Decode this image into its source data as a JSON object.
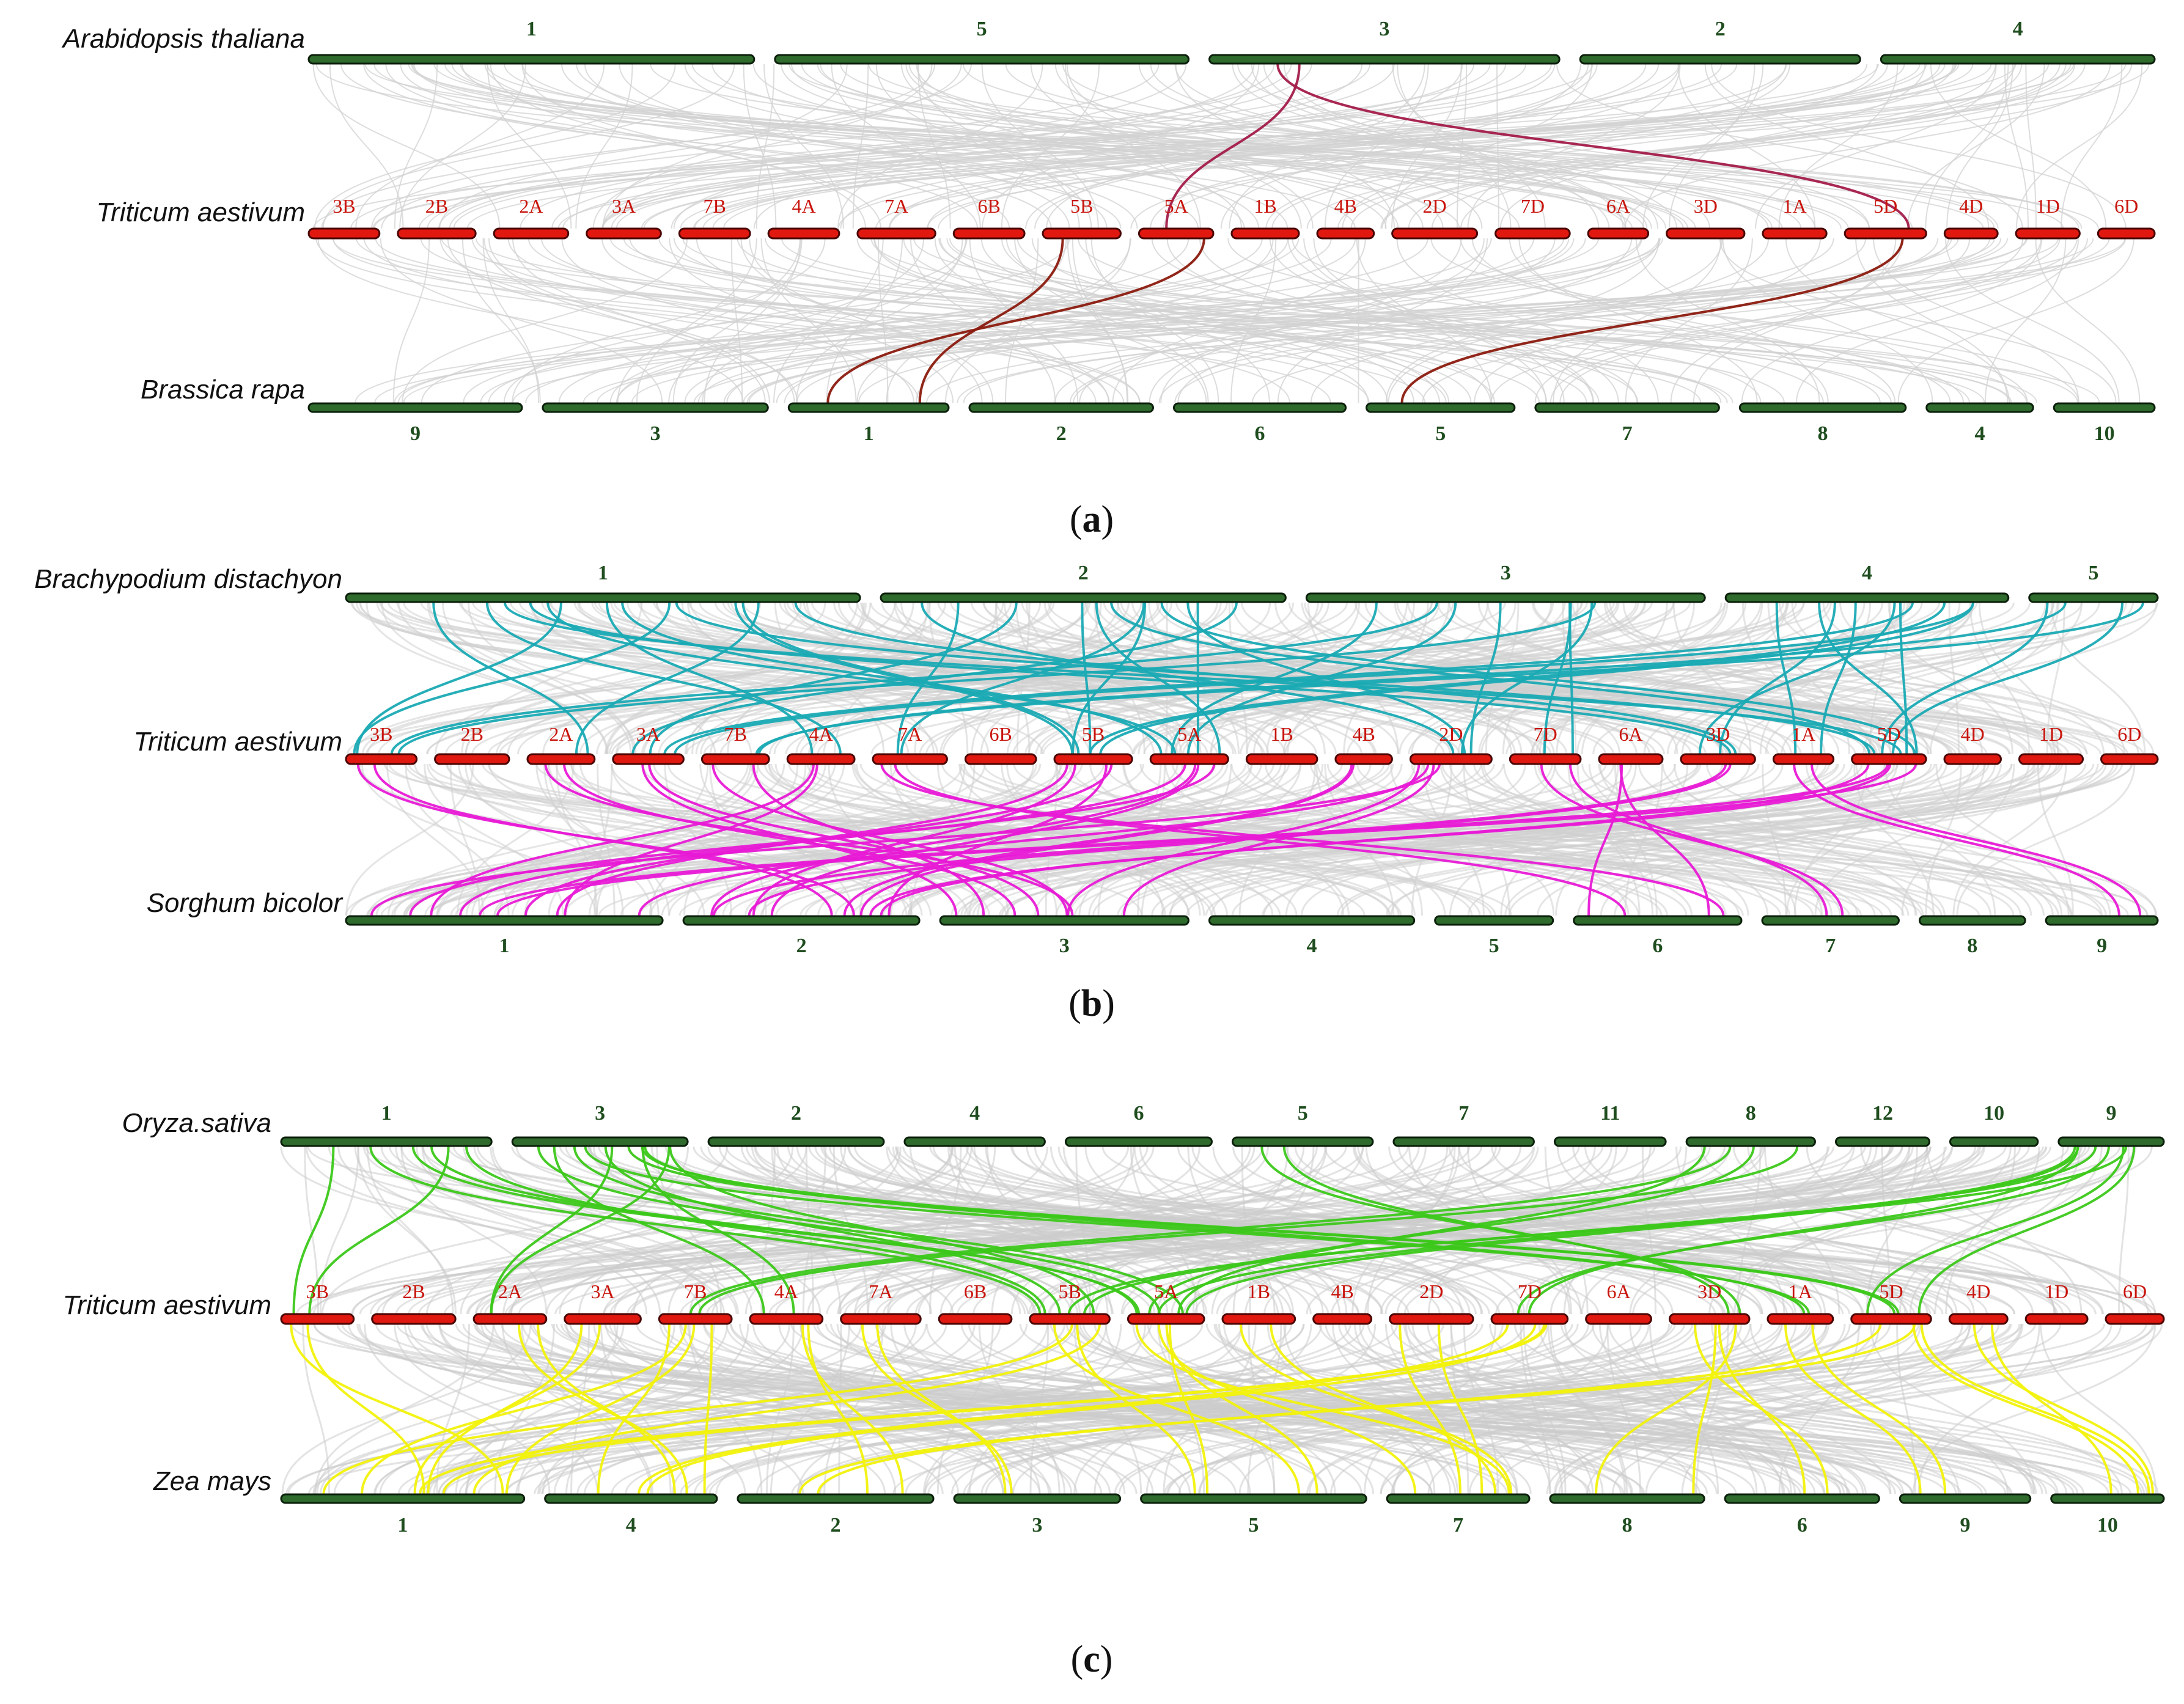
{
  "panels": [
    {
      "panel_label_open": "(",
      "panel_letter": "a",
      "panel_label_close": ")",
      "highlight_color": "#8b1a0e",
      "highlight_color_upper": "#a31b4a",
      "background_link_color": "#d2d2d2",
      "top_species": "Arabidopsis thaliana",
      "middle_species": "Triticum aestivum",
      "bottom_species": "Brassica rapa",
      "top_chromosomes": [
        "1",
        "5",
        "3",
        "2",
        "4"
      ],
      "middle_chromosomes": [
        "3B",
        "2B",
        "2A",
        "3A",
        "7B",
        "4A",
        "7A",
        "6B",
        "5B",
        "5A",
        "1B",
        "4B",
        "2D",
        "7D",
        "6A",
        "3D",
        "1A",
        "5D",
        "4D",
        "1D",
        "6D"
      ],
      "bottom_chromosomes": [
        "9",
        "3",
        "1",
        "2",
        "6",
        "5",
        "7",
        "8",
        "4",
        "10"
      ],
      "highlight_links_top": [
        [
          "3",
          "5A"
        ],
        [
          "3",
          "5D"
        ]
      ],
      "highlight_links_bottom": [
        [
          "5B",
          "1"
        ],
        [
          "5A",
          "1"
        ],
        [
          "5D",
          "5"
        ]
      ]
    },
    {
      "panel_label_open": "(",
      "panel_letter": "b",
      "panel_label_close": ")",
      "highlight_color": "#e81ad6",
      "highlight_color_upper": "#1aaab4",
      "background_link_color": "#cfcfcf",
      "top_species": "Brachypodium distachyon",
      "middle_species": "Triticum aestivum",
      "bottom_species": "Sorghum bicolor",
      "top_chromosomes": [
        "1",
        "2",
        "3",
        "4",
        "5"
      ],
      "middle_chromosomes": [
        "3B",
        "2B",
        "2A",
        "3A",
        "7B",
        "4A",
        "7A",
        "6B",
        "5B",
        "5A",
        "1B",
        "4B",
        "2D",
        "7D",
        "6A",
        "3D",
        "1A",
        "5D",
        "4D",
        "1D",
        "6D"
      ],
      "bottom_chromosomes": [
        "1",
        "2",
        "3",
        "4",
        "5",
        "6",
        "7",
        "8",
        "9"
      ],
      "highlight_links_top": [
        [
          "1",
          "3B"
        ],
        [
          "1",
          "2A"
        ],
        [
          "1",
          "4A"
        ],
        [
          "1",
          "5B"
        ],
        [
          "1",
          "5A"
        ],
        [
          "1",
          "3D"
        ],
        [
          "1",
          "5D"
        ],
        [
          "2",
          "3A"
        ],
        [
          "2",
          "7A"
        ],
        [
          "2",
          "5B"
        ],
        [
          "2",
          "5A"
        ],
        [
          "2",
          "2D"
        ],
        [
          "2",
          "5D"
        ],
        [
          "3",
          "5A"
        ],
        [
          "3",
          "7D"
        ],
        [
          "3",
          "2D"
        ],
        [
          "3",
          "3B"
        ],
        [
          "4",
          "5D"
        ],
        [
          "4",
          "3A"
        ],
        [
          "4",
          "5B"
        ],
        [
          "4",
          "3D"
        ],
        [
          "4",
          "1A"
        ],
        [
          "5",
          "5D"
        ],
        [
          "5",
          "7B"
        ]
      ],
      "highlight_links_bottom": [
        [
          "3B",
          "2"
        ],
        [
          "2A",
          "3"
        ],
        [
          "3A",
          "3"
        ],
        [
          "7B",
          "3"
        ],
        [
          "4A",
          "1"
        ],
        [
          "5B",
          "1"
        ],
        [
          "5B",
          "2"
        ],
        [
          "5A",
          "2"
        ],
        [
          "5A",
          "1"
        ],
        [
          "2D",
          "1"
        ],
        [
          "2D",
          "3"
        ],
        [
          "7D",
          "7"
        ],
        [
          "3D",
          "2"
        ],
        [
          "1A",
          "9"
        ],
        [
          "5D",
          "1"
        ],
        [
          "5D",
          "2"
        ],
        [
          "6A",
          "6"
        ],
        [
          "4B",
          "2"
        ],
        [
          "7A",
          "6"
        ]
      ]
    },
    {
      "panel_label_open": "(",
      "panel_letter": "c",
      "panel_label_close": ")",
      "highlight_color": "#f2f20c",
      "highlight_color_upper": "#3cc81a",
      "background_link_color": "#cccccc",
      "top_species": "Oryza.sativa",
      "middle_species": "Triticum aestivum",
      "bottom_species": "Zea mays",
      "top_chromosomes": [
        "1",
        "3",
        "2",
        "4",
        "6",
        "5",
        "7",
        "11",
        "8",
        "12",
        "10",
        "9"
      ],
      "middle_chromosomes": [
        "3B",
        "2B",
        "2A",
        "3A",
        "7B",
        "4A",
        "7A",
        "6B",
        "5B",
        "5A",
        "1B",
        "4B",
        "2D",
        "7D",
        "6A",
        "3D",
        "1A",
        "5D",
        "4D",
        "1D",
        "6D"
      ],
      "bottom_chromosomes": [
        "1",
        "4",
        "2",
        "3",
        "5",
        "7",
        "8",
        "6",
        "9",
        "10"
      ],
      "highlight_links_top": [
        [
          "1",
          "3B"
        ],
        [
          "1",
          "5B"
        ],
        [
          "1",
          "5A"
        ],
        [
          "3",
          "2A"
        ],
        [
          "3",
          "4A"
        ],
        [
          "3",
          "5B"
        ],
        [
          "3",
          "5A"
        ],
        [
          "3",
          "5D"
        ],
        [
          "3",
          "1A"
        ],
        [
          "5",
          "3D"
        ],
        [
          "8",
          "7B"
        ],
        [
          "8",
          "5A"
        ],
        [
          "9",
          "5B"
        ],
        [
          "9",
          "5A"
        ],
        [
          "9",
          "5D"
        ],
        [
          "9",
          "7D"
        ]
      ],
      "highlight_links_bottom": [
        [
          "3B",
          "1"
        ],
        [
          "2A",
          "4"
        ],
        [
          "3A",
          "1"
        ],
        [
          "7B",
          "1"
        ],
        [
          "7B",
          "4"
        ],
        [
          "4A",
          "2"
        ],
        [
          "7A",
          "3"
        ],
        [
          "5B",
          "5"
        ],
        [
          "5B",
          "1"
        ],
        [
          "5A",
          "5"
        ],
        [
          "5A",
          "7"
        ],
        [
          "2D",
          "7"
        ],
        [
          "7D",
          "4"
        ],
        [
          "7D",
          "1"
        ],
        [
          "3D",
          "6"
        ],
        [
          "3D",
          "8"
        ],
        [
          "1A",
          "9"
        ],
        [
          "5D",
          "10"
        ],
        [
          "5D",
          "2"
        ],
        [
          "4D",
          "10"
        ],
        [
          "1B",
          "7"
        ]
      ]
    }
  ]
}
